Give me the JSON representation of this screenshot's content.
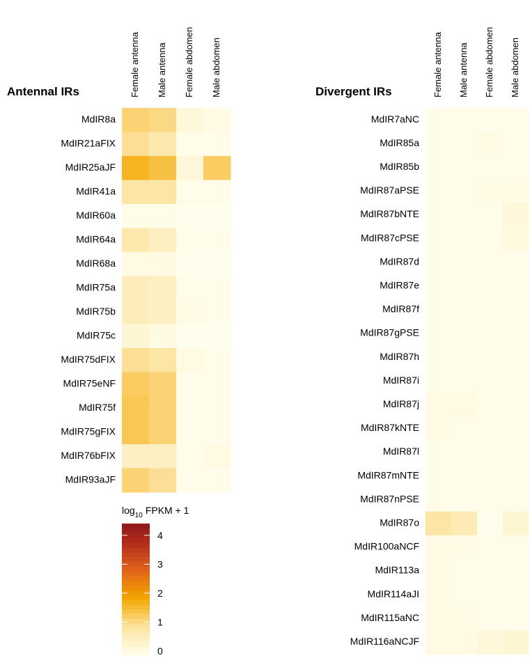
{
  "chart_data": [
    {
      "type": "heatmap",
      "title": "Antennal IRs",
      "columns": [
        "Female antenna",
        "Male antenna",
        "Female abdomen",
        "Male abdomen"
      ],
      "rows": [
        "MdIR8a",
        "MdIR21aFIX",
        "MdIR25aJF",
        "MdIR41a",
        "MdIR60a",
        "MdIR64a",
        "MdIR68a",
        "MdIR75a",
        "MdIR75b",
        "MdIR75c",
        "MdIR75dFIX",
        "MdIR75eNF",
        "MdIR75f",
        "MdIR75gFIX",
        "MdIR76bFIX",
        "MdIR93aJF"
      ],
      "values": [
        [
          1.3,
          1.2,
          0.3,
          0.15
        ],
        [
          1.1,
          0.9,
          0.1,
          0.1
        ],
        [
          1.8,
          1.6,
          0.3,
          1.4
        ],
        [
          1.0,
          1.0,
          0.1,
          0.1
        ],
        [
          0.1,
          0.1,
          0.05,
          0.05
        ],
        [
          0.9,
          0.6,
          0.1,
          0.1
        ],
        [
          0.2,
          0.2,
          0.05,
          0.05
        ],
        [
          0.7,
          0.6,
          0.1,
          0.1
        ],
        [
          0.7,
          0.6,
          0.15,
          0.1
        ],
        [
          0.4,
          0.2,
          0.05,
          0.05
        ],
        [
          1.1,
          1.0,
          0.2,
          0.1
        ],
        [
          1.4,
          1.3,
          0.1,
          0.1
        ],
        [
          1.5,
          1.3,
          0.1,
          0.1
        ],
        [
          1.5,
          1.3,
          0.1,
          0.1
        ],
        [
          0.6,
          0.6,
          0.1,
          0.2
        ],
        [
          1.3,
          1.1,
          0.1,
          0.1
        ]
      ]
    },
    {
      "type": "heatmap",
      "title": "Divergent IRs",
      "columns": [
        "Female antenna",
        "Male antenna",
        "Female abdomen",
        "Male abdomen"
      ],
      "rows": [
        "MdIR7aNC",
        "MdIR85a",
        "MdIR85b",
        "MdIR87aPSE",
        "MdIR87bNTE",
        "MdIR87cPSE",
        "MdIR87d",
        "MdIR87e",
        "MdIR87f",
        "MdIR87gPSE",
        "MdIR87h",
        "MdIR87i",
        "MdIR87j",
        "MdIR87kNTE",
        "MdIR87l",
        "MdIR87mNTE",
        "MdIR87nPSE",
        "MdIR87o",
        "MdIR100aNCF",
        "MdIR113a",
        "MdIR114aJI",
        "MdIR115aNC",
        "MdIR116aNCJF"
      ],
      "values": [
        [
          0.1,
          0.1,
          0.1,
          0.1
        ],
        [
          0.1,
          0.1,
          0.15,
          0.1
        ],
        [
          0.1,
          0.1,
          0.1,
          0.1
        ],
        [
          0.1,
          0.1,
          0.15,
          0.15
        ],
        [
          0.1,
          0.1,
          0.1,
          0.3
        ],
        [
          0.1,
          0.1,
          0.1,
          0.25
        ],
        [
          0.1,
          0.1,
          0.1,
          0.1
        ],
        [
          0.1,
          0.1,
          0.1,
          0.1
        ],
        [
          0.1,
          0.1,
          0.1,
          0.1
        ],
        [
          0.1,
          0.1,
          0.1,
          0.1
        ],
        [
          0.1,
          0.1,
          0.1,
          0.1
        ],
        [
          0.1,
          0.1,
          0.1,
          0.1
        ],
        [
          0.2,
          0.2,
          0.1,
          0.1
        ],
        [
          0.15,
          0.1,
          0.1,
          0.1
        ],
        [
          0.1,
          0.1,
          0.1,
          0.1
        ],
        [
          0.1,
          0.1,
          0.1,
          0.1
        ],
        [
          0.1,
          0.1,
          0.1,
          0.1
        ],
        [
          1.0,
          0.8,
          0.05,
          0.4
        ],
        [
          0.15,
          0.15,
          0.1,
          0.1
        ],
        [
          0.15,
          0.1,
          0.1,
          0.1
        ],
        [
          0.15,
          0.1,
          0.1,
          0.1
        ],
        [
          0.15,
          0.15,
          0.1,
          0.1
        ],
        [
          0.2,
          0.2,
          0.3,
          0.4
        ]
      ]
    }
  ],
  "colorbar": {
    "title_parts": [
      "log",
      "10",
      "FPKM + 1"
    ],
    "lim": [
      0,
      4.6
    ],
    "ticks": [
      0,
      1,
      2,
      3,
      4
    ],
    "colorscale": [
      [
        0,
        "#fffff0"
      ],
      [
        1,
        "#fde5a5"
      ],
      [
        2,
        "#f5a800"
      ],
      [
        3,
        "#e0621a"
      ],
      [
        4,
        "#b02a1c"
      ],
      [
        4.6,
        "#8c1a1a"
      ]
    ]
  }
}
